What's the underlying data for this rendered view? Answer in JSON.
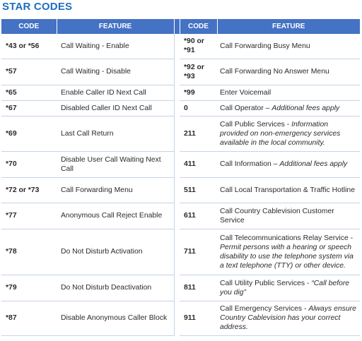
{
  "title": "STAR CODES",
  "header": {
    "code": "CODE",
    "feature": "FEATURE",
    "code2": "CODE",
    "feature2": "FEATURE"
  },
  "colors": {
    "header_bg": "#4472c4",
    "title": "#1e6fbf"
  },
  "rows": [
    {
      "code": "*43 or *56",
      "feature": "Call Waiting - Enable",
      "code2": "*90 or *91",
      "feature2": "Call Forwarding Busy Menu",
      "feature2_italic": ""
    },
    {
      "code": "*57",
      "feature": "Call Waiting - Disable",
      "code2": "*92 or *93",
      "feature2": "Call Forwarding No Answer Menu",
      "feature2_italic": ""
    },
    {
      "code": "*65",
      "feature": "Enable Caller ID Next Call",
      "code2": "*99",
      "feature2": "Enter Voicemail",
      "feature2_italic": ""
    },
    {
      "code": "*67",
      "feature": "Disabled Caller ID Next Call",
      "code2": "0",
      "feature2": "Call Operator – ",
      "feature2_italic": "Additional fees apply"
    },
    {
      "code": "*69",
      "feature": "Last Call Return",
      "code2": "211",
      "feature2": "Call Public Services - ",
      "feature2_italic": "Information provided on non-emergency services available in the local community."
    },
    {
      "code": "*70",
      "feature": "Disable User Call Waiting Next Call",
      "code2": "411",
      "feature2": "Call Information – ",
      "feature2_italic": "Additional fees apply"
    },
    {
      "code": "*72 or *73",
      "feature": "Call Forwarding Menu",
      "code2": "511",
      "feature2": "Call Local Transportation & Traffic Hotline",
      "feature2_italic": ""
    },
    {
      "code": "*77",
      "feature": "Anonymous Call Reject Enable",
      "code2": "611",
      "feature2": "Call Country Cablevision Customer Service",
      "feature2_italic": ""
    },
    {
      "code": "*78",
      "feature": "Do Not Disturb Activation",
      "code2": "711",
      "feature2": "Call Telecommunications Relay Service - ",
      "feature2_italic": "Permit persons with a hearing or speech disability to use the telephone system via a text telephone (TTY) or other device."
    },
    {
      "code": "*79",
      "feature": "Do Not Disturb Deactivation",
      "code2": "811",
      "feature2": "Call Utility Public Services - ",
      "feature2_italic": "“Call before you dig”"
    },
    {
      "code": "*87",
      "feature": "Disable Anonymous Caller Block",
      "code2": "911",
      "feature2": "Call Emergency Services - ",
      "feature2_italic": "Always ensure Country Cablevision has your correct address."
    }
  ]
}
